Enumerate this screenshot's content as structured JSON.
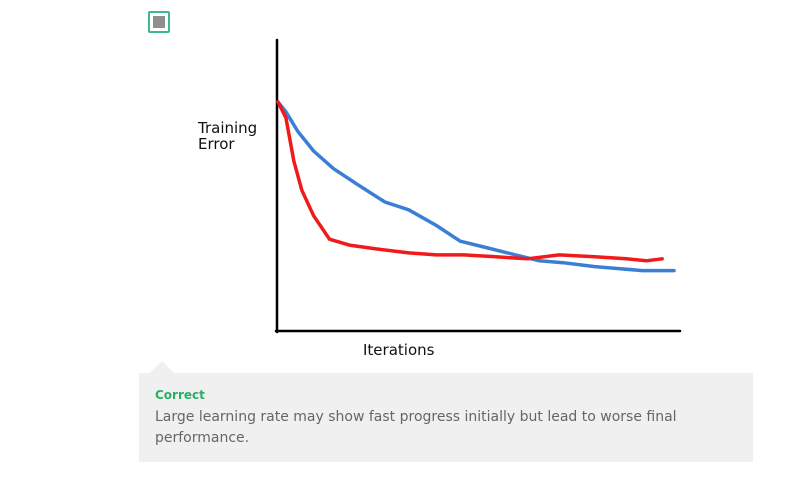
{
  "quiz": {
    "option_checked": true,
    "option_color": "#3cba8a"
  },
  "chart_data": {
    "type": "line",
    "title": "",
    "ylabel_lines": [
      "Training",
      "Error"
    ],
    "xlabel": "Iterations",
    "grid": false,
    "legend": "none",
    "xlim": [
      0,
      100
    ],
    "ylim": [
      0,
      100
    ],
    "series": [
      {
        "color": "#3a7fd5",
        "x": [
          0,
          2,
          5,
          9,
          14,
          20,
          27,
          33,
          40,
          46,
          52,
          60,
          66,
          72,
          80,
          86,
          92,
          96,
          100
        ],
        "y": [
          100,
          95,
          85,
          75,
          66,
          58,
          49,
          45,
          37,
          29,
          26,
          22,
          19,
          18,
          16,
          15,
          14,
          14,
          14
        ]
      },
      {
        "color": "#f01a1a",
        "x": [
          0,
          2,
          4,
          6,
          9,
          13,
          18,
          25,
          33,
          40,
          47,
          55,
          63,
          71,
          80,
          88,
          93,
          97
        ],
        "y": [
          100,
          92,
          70,
          55,
          42,
          30,
          27,
          25,
          23,
          22,
          22,
          21,
          20,
          22,
          21,
          20,
          19,
          20
        ]
      }
    ]
  },
  "feedback": {
    "status": "Correct",
    "message": "Large learning rate may show fast progress initially but lead to worse final performance.",
    "status_color": "#2bae66"
  }
}
